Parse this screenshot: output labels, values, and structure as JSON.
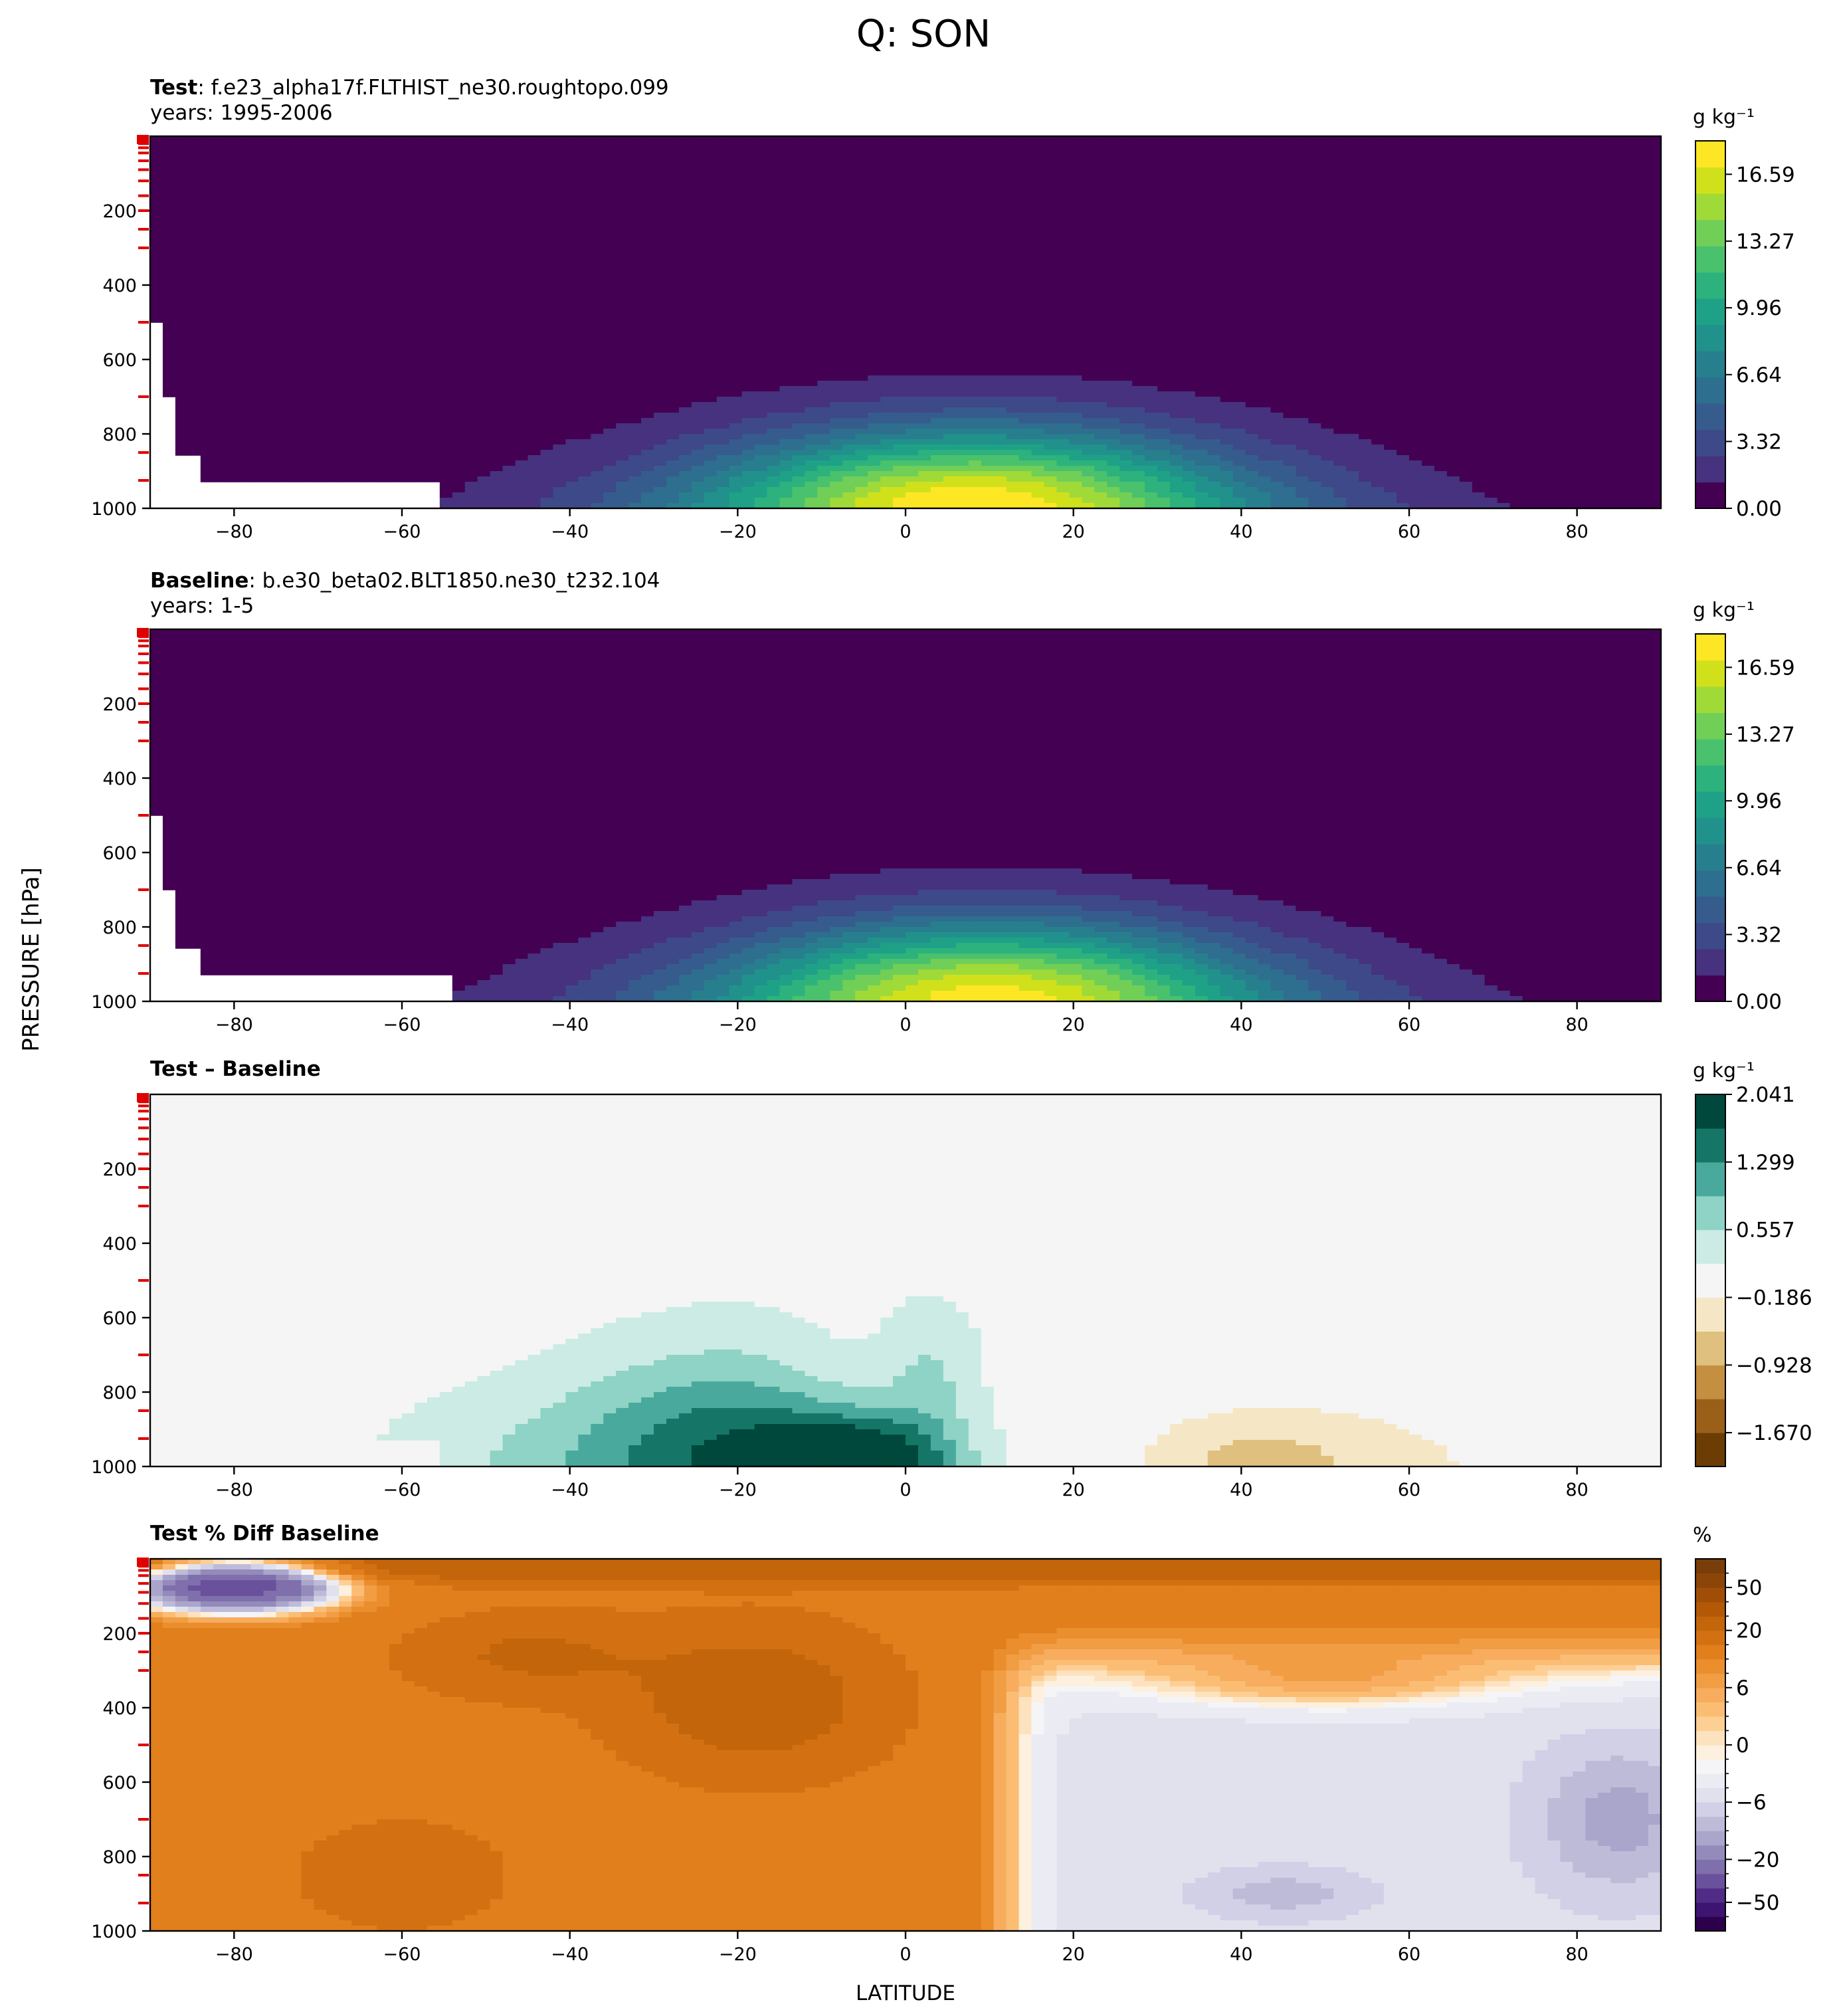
{
  "figure": {
    "title": "Q: SON",
    "ylabel": "PRESSURE [hPa]",
    "xlabel": "LATITUDE"
  },
  "chart_data": [
    {
      "type": "heatmap",
      "title_bold": "Test",
      "title_rest": ": f.e23_alpha17f.FLTHIST_ne30.roughtopo.099",
      "subtitle": "years: 1995-2006",
      "x_ticks": [
        -80,
        -60,
        -40,
        -20,
        0,
        20,
        40,
        60,
        80
      ],
      "y_ticks": [
        200,
        400,
        600,
        800,
        1000
      ],
      "xlim": [
        -90,
        90
      ],
      "ylim": [
        1000,
        0
      ],
      "units": "g kg⁻¹",
      "colorbar_ticks": [
        "16.59",
        "13.27",
        "9.96",
        "6.64",
        "3.32",
        "0.00"
      ],
      "colorbar_range": [
        0,
        18.25
      ],
      "colors": [
        "#440154",
        "#46327e",
        "#3e4989",
        "#365c8d",
        "#2e6e8e",
        "#277f8e",
        "#21918c",
        "#1fa187",
        "#2db27d",
        "#4ac16d",
        "#71cf57",
        "#a0da39",
        "#d0e11c",
        "#fde725"
      ],
      "peak_value": 17.5,
      "peak_lat": 8,
      "peak_pressure": 1000
    },
    {
      "type": "heatmap",
      "title_bold": "Baseline",
      "title_rest": ": b.e30_beta02.BLT1850.ne30_t232.104",
      "subtitle": "years: 1-5",
      "x_ticks": [
        -80,
        -60,
        -40,
        -20,
        0,
        20,
        40,
        60,
        80
      ],
      "y_ticks": [
        200,
        400,
        600,
        800,
        1000
      ],
      "xlim": [
        -90,
        90
      ],
      "ylim": [
        1000,
        0
      ],
      "units": "g kg⁻¹",
      "colorbar_ticks": [
        "16.59",
        "13.27",
        "9.96",
        "6.64",
        "3.32",
        "0.00"
      ],
      "colorbar_range": [
        0,
        18.25
      ],
      "colors": [
        "#440154",
        "#46327e",
        "#3e4989",
        "#365c8d",
        "#2e6e8e",
        "#277f8e",
        "#21918c",
        "#1fa187",
        "#2db27d",
        "#4ac16d",
        "#71cf57",
        "#a0da39",
        "#d0e11c",
        "#fde725"
      ],
      "peak_value": 16.9,
      "peak_lat": 10,
      "peak_pressure": 1000
    },
    {
      "type": "heatmap",
      "title_bold": "Test – Baseline",
      "title_rest": "",
      "subtitle": "",
      "x_ticks": [
        -80,
        -60,
        -40,
        -20,
        0,
        20,
        40,
        60,
        80
      ],
      "y_ticks": [
        200,
        400,
        600,
        800,
        1000
      ],
      "xlim": [
        -90,
        90
      ],
      "ylim": [
        1000,
        0
      ],
      "units": "g kg⁻¹",
      "colorbar_ticks": [
        "2.041",
        "1.299",
        "0.557",
        "−0.186",
        "−0.928",
        "−1.670"
      ],
      "colorbar_range": [
        -2.041,
        2.041
      ],
      "colors": [
        "#6b3d05",
        "#9a5f19",
        "#c58f42",
        "#dfc07e",
        "#f5e7c6",
        "#f4f5f4",
        "#cbebe4",
        "#8ed3c5",
        "#4aa99d",
        "#157668",
        "#00483b"
      ]
    },
    {
      "type": "heatmap",
      "title_bold": "Test % Diff Baseline",
      "title_rest": "",
      "subtitle": "",
      "x_ticks": [
        -80,
        -60,
        -40,
        -20,
        0,
        20,
        40,
        60,
        80
      ],
      "y_ticks": [
        200,
        400,
        600,
        800,
        1000
      ],
      "xlim": [
        -90,
        90
      ],
      "ylim": [
        1000,
        0
      ],
      "units": "%",
      "colorbar_ticks": [
        "50",
        "20",
        "6",
        "0",
        "−6",
        "−20",
        "−50"
      ],
      "colorbar_levels": [
        -100,
        -70,
        -50,
        -40,
        -30,
        -20,
        -15,
        -10,
        -8,
        -6,
        -4,
        -2,
        -1,
        0,
        1,
        2,
        4,
        6,
        8,
        10,
        15,
        20,
        30,
        40,
        50,
        70,
        100
      ],
      "colors": [
        "#2d004b",
        "#3d1471",
        "#512c86",
        "#6a519b",
        "#7f6fac",
        "#948bbb",
        "#aaa5cb",
        "#bebbd9",
        "#d1d0e6",
        "#e1e1ee",
        "#ebebf3",
        "#f5f5f7",
        "#fdf0de",
        "#fde2bf",
        "#fdcf95",
        "#fbbd74",
        "#f7ac5e",
        "#f19d43",
        "#ea8e2e",
        "#e17f1d",
        "#d37112",
        "#c3650b",
        "#b35807",
        "#a04e07",
        "#8c4508",
        "#783d09"
      ]
    }
  ]
}
